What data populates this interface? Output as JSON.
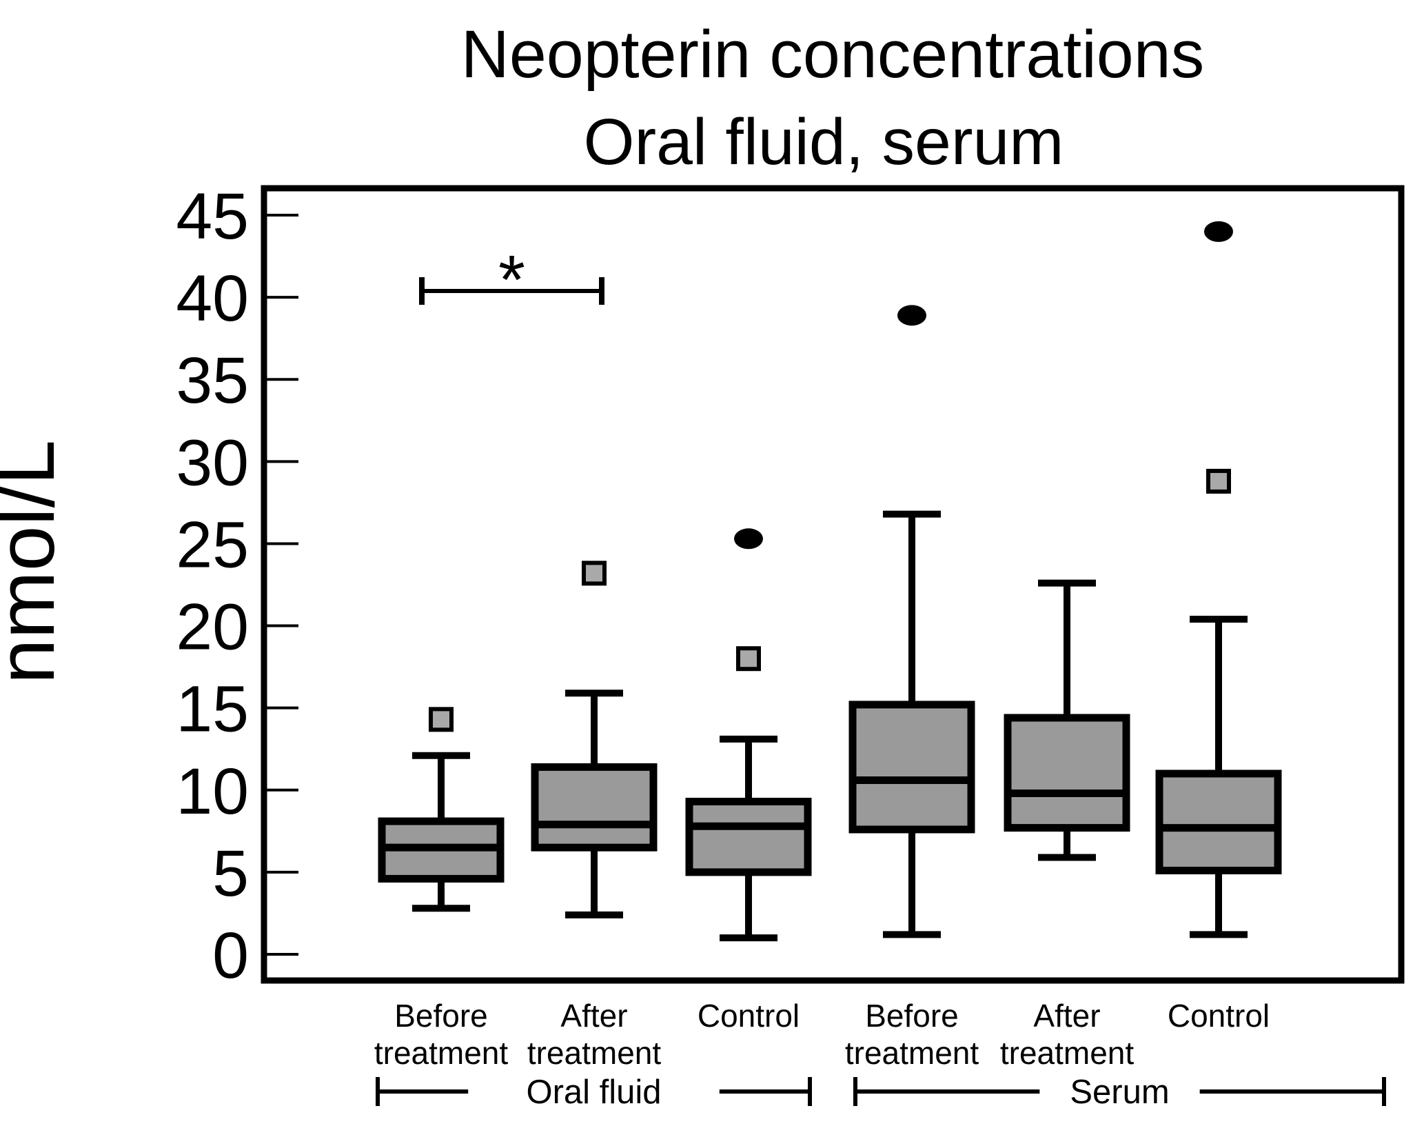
{
  "chart_data": {
    "type": "box",
    "title_line1": "Neopterin concentrations",
    "title_line2": "Oral fluid, serum",
    "ylabel": "nmol/L",
    "unit": "nmol/L",
    "ylim": [
      0,
      45
    ],
    "ytick_step": 5,
    "ytick_labels": [
      "0",
      "5",
      "10",
      "15",
      "20",
      "25",
      "30",
      "35",
      "40",
      "45"
    ],
    "grid": false,
    "legend": "none",
    "groups": [
      {
        "label": "Oral fluid",
        "box_indexes": [
          0,
          1,
          2
        ]
      },
      {
        "label": "Serum",
        "box_indexes": [
          3,
          4,
          5
        ]
      }
    ],
    "boxes": [
      {
        "group": "Oral fluid",
        "label": "Before treatment",
        "whisker_low": 2.8,
        "q1": 4.6,
        "median": 6.5,
        "q3": 8.1,
        "whisker_high": 12.1,
        "outliers": [
          {
            "marker": "square",
            "value": 14.3
          }
        ]
      },
      {
        "group": "Oral fluid",
        "label": "After treatment",
        "whisker_low": 2.4,
        "q1": 6.5,
        "median": 7.9,
        "q3": 11.4,
        "whisker_high": 15.9,
        "outliers": [
          {
            "marker": "square",
            "value": 23.2
          }
        ]
      },
      {
        "group": "Oral fluid",
        "label": "Control",
        "whisker_low": 1.0,
        "q1": 5.0,
        "median": 7.8,
        "q3": 9.3,
        "whisker_high": 13.1,
        "outliers": [
          {
            "marker": "square",
            "value": 18.0
          },
          {
            "marker": "circle",
            "value": 25.3
          }
        ]
      },
      {
        "group": "Serum",
        "label": "Before treatment",
        "whisker_low": 1.2,
        "q1": 7.6,
        "median": 10.6,
        "q3": 15.2,
        "whisker_high": 26.8,
        "outliers": [
          {
            "marker": "circle",
            "value": 38.9
          }
        ]
      },
      {
        "group": "Serum",
        "label": "After treatment",
        "whisker_low": 5.9,
        "q1": 7.7,
        "median": 9.8,
        "q3": 14.4,
        "whisker_high": 22.6,
        "outliers": []
      },
      {
        "group": "Serum",
        "label": "Control",
        "whisker_low": 1.2,
        "q1": 5.1,
        "median": 7.7,
        "q3": 11.0,
        "whisker_high": 20.4,
        "outliers": [
          {
            "marker": "square",
            "value": 28.8
          },
          {
            "marker": "circle",
            "value": 44.0
          }
        ]
      }
    ],
    "significance": {
      "symbol": "*",
      "from_box": 0,
      "to_box": 1
    },
    "colors": {
      "box_fill": "#9a9a9a",
      "square_outlier_fill": "#a9a9a9",
      "line": "#000000",
      "background": "#ffffff"
    }
  }
}
